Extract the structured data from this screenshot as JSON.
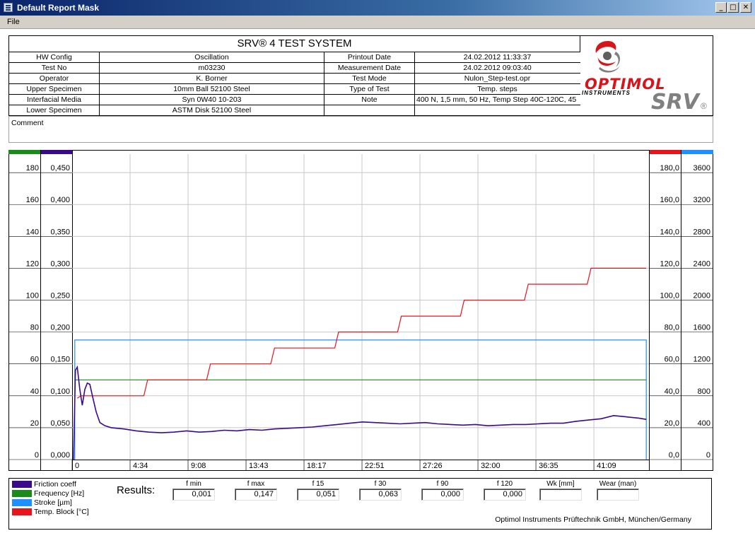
{
  "window": {
    "title": "Default Report Mask",
    "minimize": "_",
    "maximize": "□",
    "close": "✕"
  },
  "menu": {
    "file": "File"
  },
  "header": {
    "system_title": "SRV® 4 TEST SYSTEM",
    "rows": [
      [
        "HW Config",
        "Oscillation",
        "Printout Date",
        "24.02.2012 11:33:37"
      ],
      [
        "Test No",
        "m03230",
        "Measurement Date",
        "24.02.2012 09:03:40"
      ],
      [
        "Operator",
        "K. Borner",
        "Test Mode",
        "Nulon_Step-test.opr"
      ],
      [
        "Upper Specimen",
        "10mm Ball 52100 Steel",
        "Type of Test",
        "Temp. steps"
      ],
      [
        "Interfacial Media",
        "Syn 0W40 10-203",
        "Note",
        "400 N, 1,5 mm, 50 Hz, Temp Step 40C-120C, 45"
      ],
      [
        "Lower Specimen",
        "ASTM Disk 52100 Steel",
        "",
        ""
      ]
    ],
    "logo": {
      "brand": "OPTIMOL",
      "sub": "INSTRUMENTS",
      "product": "SRV",
      "reg": "®"
    }
  },
  "comment": {
    "label": "Comment"
  },
  "chart_data": {
    "type": "line",
    "x_ticks": [
      "0",
      "4:34",
      "9:08",
      "13:43",
      "18:17",
      "22:51",
      "27:26",
      "32:00",
      "36:35",
      "41:09"
    ],
    "x_range_min": [
      0,
      45.7
    ],
    "axes": {
      "left1": {
        "color": "#1a8a1a",
        "ticks": [
          "0",
          "20",
          "40",
          "60",
          "80",
          "100",
          "120",
          "140",
          "160",
          "180"
        ],
        "range": [
          0,
          180
        ]
      },
      "left2": {
        "color": "#3a0a8a",
        "ticks": [
          "0,000",
          "0,050",
          "0,100",
          "0,150",
          "0,200",
          "0,250",
          "0,300",
          "0,350",
          "0,400",
          "0,450"
        ],
        "range": [
          0,
          0.45
        ]
      },
      "right1": {
        "color": "#e8141b",
        "ticks": [
          "0,0",
          "20,0",
          "40,0",
          "60,0",
          "80,0",
          "100,0",
          "120,0",
          "140,0",
          "160,0",
          "180,0"
        ],
        "range": [
          0,
          180
        ]
      },
      "right2": {
        "color": "#1e90ff",
        "ticks": [
          "0",
          "400",
          "800",
          "1200",
          "1600",
          "2000",
          "2400",
          "2800",
          "3200",
          "3600"
        ],
        "range": [
          0,
          3600
        ]
      }
    },
    "grid": true,
    "series": [
      {
        "name": "Friction coeff",
        "color": "#3a0a8a",
        "axis": "left2",
        "x": [
          0,
          0.15,
          0.3,
          0.5,
          0.7,
          0.9,
          1.1,
          1.3,
          1.5,
          1.8,
          2.1,
          2.5,
          3,
          4,
          5,
          6,
          7,
          8,
          9,
          10,
          11,
          12,
          13,
          14,
          15,
          16,
          17,
          18,
          19,
          20,
          21,
          22,
          23,
          24,
          25,
          26,
          27,
          28,
          29,
          30,
          31,
          32,
          33,
          34,
          35,
          36,
          37,
          38,
          39,
          40,
          41,
          42,
          43,
          44,
          45,
          45.6
        ],
        "y": [
          0.0,
          0.14,
          0.145,
          0.11,
          0.085,
          0.11,
          0.12,
          0.118,
          0.1,
          0.075,
          0.058,
          0.053,
          0.05,
          0.048,
          0.045,
          0.043,
          0.042,
          0.043,
          0.045,
          0.043,
          0.044,
          0.046,
          0.045,
          0.047,
          0.046,
          0.048,
          0.049,
          0.05,
          0.051,
          0.053,
          0.055,
          0.057,
          0.059,
          0.058,
          0.057,
          0.056,
          0.057,
          0.058,
          0.056,
          0.055,
          0.054,
          0.055,
          0.053,
          0.054,
          0.055,
          0.055,
          0.056,
          0.057,
          0.057,
          0.06,
          0.062,
          0.064,
          0.069,
          0.067,
          0.065,
          0.063
        ]
      },
      {
        "name": "Frequency [Hz]",
        "color": "#1a8a1a",
        "axis": "left1",
        "x": [
          0.1,
          45.6
        ],
        "y": [
          50,
          50
        ]
      },
      {
        "name": "Stroke [µm]",
        "color": "#1e90ff",
        "axis": "right2",
        "x": [
          0.1,
          0.1,
          45.6,
          45.6
        ],
        "y": [
          0,
          1500,
          1500,
          0
        ]
      },
      {
        "name": "Temp. Block [°C]",
        "color": "#e8141b",
        "axis": "right1",
        "x": [
          0.3,
          0.6,
          5.6,
          5.9,
          10.6,
          10.9,
          15.7,
          16.0,
          20.8,
          21.1,
          25.8,
          26.1,
          30.8,
          31.1,
          35.9,
          36.2,
          40.9,
          41.2,
          45.6
        ],
        "y": [
          38.5,
          40,
          40,
          50,
          50,
          60,
          60,
          70,
          70,
          80,
          80,
          90,
          90,
          100,
          100,
          110,
          110,
          120,
          120
        ]
      }
    ]
  },
  "legend": [
    {
      "label": "Friction coeff",
      "color": "#3a0a8a"
    },
    {
      "label": "Frequency [Hz]",
      "color": "#1a8a1a"
    },
    {
      "label": "Stroke [µm]",
      "color": "#1e90ff"
    },
    {
      "label": "Temp. Block [°C]",
      "color": "#e8141b"
    }
  ],
  "results": {
    "title": "Results:",
    "fields": [
      {
        "label": "f min",
        "value": "0,001"
      },
      {
        "label": "f max",
        "value": "0,147"
      },
      {
        "label": "f 15",
        "value": "0,051"
      },
      {
        "label": "f 30",
        "value": "0,063"
      },
      {
        "label": "f 90",
        "value": "0,000"
      },
      {
        "label": "f 120",
        "value": "0,000"
      },
      {
        "label": "Wk [mm]",
        "value": ""
      },
      {
        "label": "Wear (man)",
        "value": ""
      }
    ],
    "company": "Optimol Instruments Prüftechnik GmbH, München/Germany"
  }
}
